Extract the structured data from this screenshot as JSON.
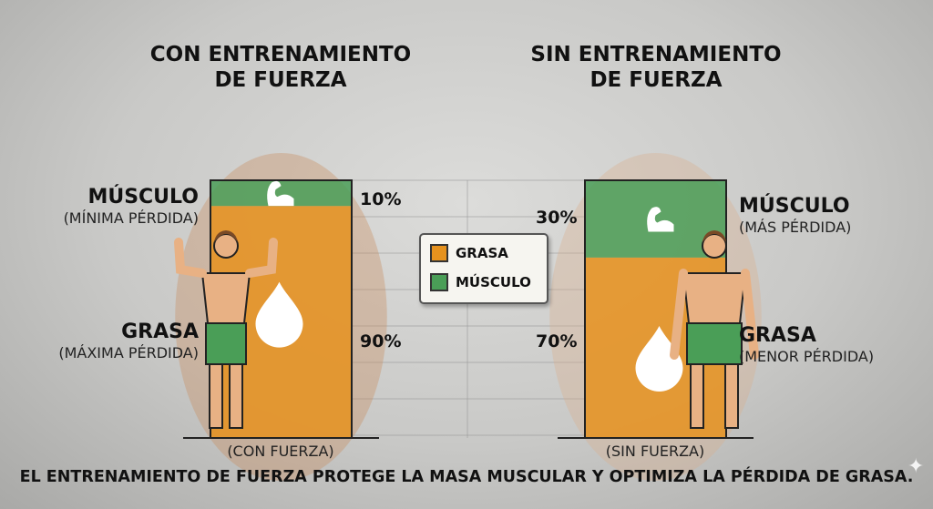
{
  "chart_data": {
    "type": "bar",
    "stacked": true,
    "categories": [
      "(CON FUERZA)",
      "(SIN FUERZA)"
    ],
    "series": [
      {
        "name": "MÚSCULO",
        "values": [
          10,
          30
        ],
        "color": "#4a9e57"
      },
      {
        "name": "GRASA",
        "values": [
          90,
          70
        ],
        "color": "#e6921e"
      }
    ],
    "value_labels": [
      [
        "10%",
        "90%"
      ],
      [
        "30%",
        "70%"
      ]
    ],
    "ylim": [
      0,
      100
    ],
    "grid": true,
    "legend": "center"
  },
  "titles": {
    "left": [
      "CON ENTRENAMIENTO",
      "DE FUERZA"
    ],
    "right": [
      "SIN ENTRENAMIENTO",
      "DE FUERZA"
    ]
  },
  "labels": {
    "left_muscle": "MÚSCULO",
    "left_muscle_sub": "(MÍNIMA PÉRDIDA)",
    "left_fat": "GRASA",
    "left_fat_sub": "(MÁXIMA PÉRDIDA)",
    "right_muscle": "MÚSCULO",
    "right_muscle_sub": "(MÁS PÉRDIDA)",
    "right_fat": "GRASA",
    "right_fat_sub": "(MENOR PÉRDIDA)"
  },
  "legend": [
    {
      "label": "GRASA",
      "color": "#e6921e"
    },
    {
      "label": "MÚSCULO",
      "color": "#4a9e57"
    }
  ],
  "icons": [
    "flexed-arm-icon",
    "fat-drop-icon",
    "muscular-figure-icon",
    "overweight-figure-icon",
    "sparkle-icon"
  ],
  "caption": "EL ENTRENAMIENTO DE FUERZA PROTEGE LA MASA MUSCULAR Y OPTIMIZA LA PÉRDIDA DE GRASA."
}
